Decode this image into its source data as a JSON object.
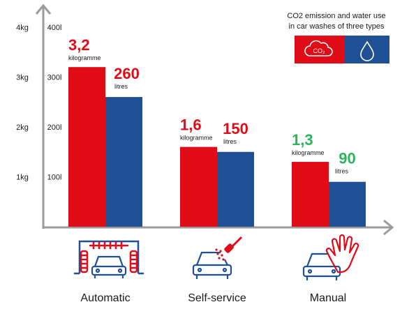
{
  "colors": {
    "co2": "#e10a17",
    "water": "#1f4f94",
    "axis": "#9b9b9b",
    "manual_label": "#2db45a",
    "text": "#1a1a1a"
  },
  "legend": {
    "title_line1": "CO2 emission and water use",
    "title_line2": "in car washes of three types",
    "co2_icon": "co2-cloud-icon",
    "water_icon": "water-drop-icon",
    "co2_symbol": "CO₂"
  },
  "chart_data": {
    "type": "bar",
    "title": "CO2 emission and water use in car washes of three types",
    "categories": [
      "Automatic",
      "Self-service",
      "Manual"
    ],
    "category_icons": [
      "automatic-wash-icon",
      "self-service-wash-icon",
      "manual-wash-icon"
    ],
    "series": [
      {
        "name": "CO2 emission",
        "unit": "kilogramme",
        "values": [
          3.2,
          1.6,
          1.3
        ],
        "value_labels": [
          "3,2",
          "1,6",
          "1,3"
        ],
        "unit_labels": [
          "kilogramme",
          "kilogramme",
          "kilogramme"
        ],
        "axis": "left"
      },
      {
        "name": "Water use",
        "unit": "litres",
        "values": [
          260,
          150,
          90
        ],
        "value_labels": [
          "260",
          "150",
          "90"
        ],
        "unit_labels": [
          "litres",
          "litres",
          "litres"
        ],
        "axis": "right"
      }
    ],
    "y_left": {
      "ticks": [
        "1kg",
        "2kg",
        "3kg",
        "4kg"
      ],
      "tick_values": [
        1,
        2,
        3,
        4
      ],
      "ylim": [
        0,
        4
      ]
    },
    "y_right": {
      "ticks": [
        "100l",
        "200l",
        "300l",
        "400l"
      ],
      "tick_values": [
        100,
        200,
        300,
        400
      ],
      "ylim": [
        0,
        400
      ]
    },
    "grid": false,
    "legend_position": "top-right"
  }
}
